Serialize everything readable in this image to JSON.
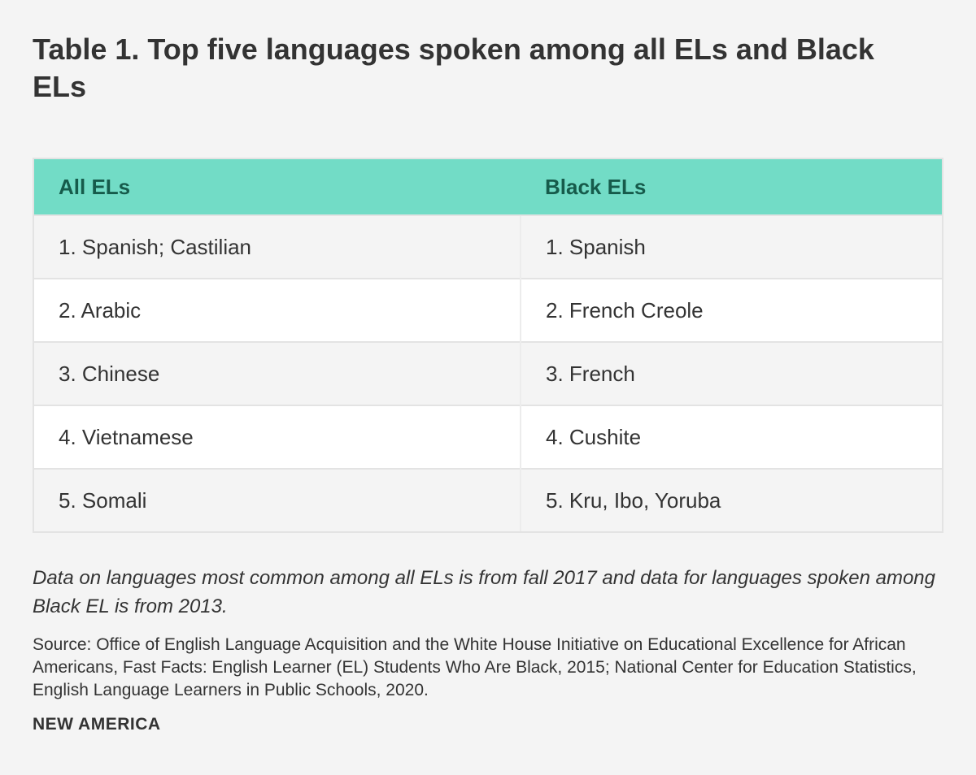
{
  "title": "Table 1. Top five languages spoken among all ELs and Black ELs",
  "table": {
    "headers": [
      "All ELs",
      "Black ELs"
    ],
    "rows": [
      [
        "1. Spanish; Castilian",
        "1. Spanish"
      ],
      [
        "2. Arabic",
        "2. French Creole"
      ],
      [
        "3. Chinese",
        "3. French"
      ],
      [
        "4. Vietnamese",
        "4. Cushite"
      ],
      [
        "5. Somali",
        "5. Kru, Ibo, Yoruba"
      ]
    ]
  },
  "note": "Data on languages most common among all ELs is from fall 2017 and data for languages spoken among Black EL is from 2013.",
  "source": "Source: Office of English Language Acquisition and the White House Initiative on Educational Excellence for African Americans, Fast Facts: English Learner (EL) Students Who Are Black, 2015; National Center for Education Statistics, English Language Learners in Public Schools, 2020.",
  "brand": "NEW AMERICA",
  "colors": {
    "header_bg": "#72dcc6",
    "header_text": "#165b4b",
    "page_bg": "#f4f4f4"
  }
}
